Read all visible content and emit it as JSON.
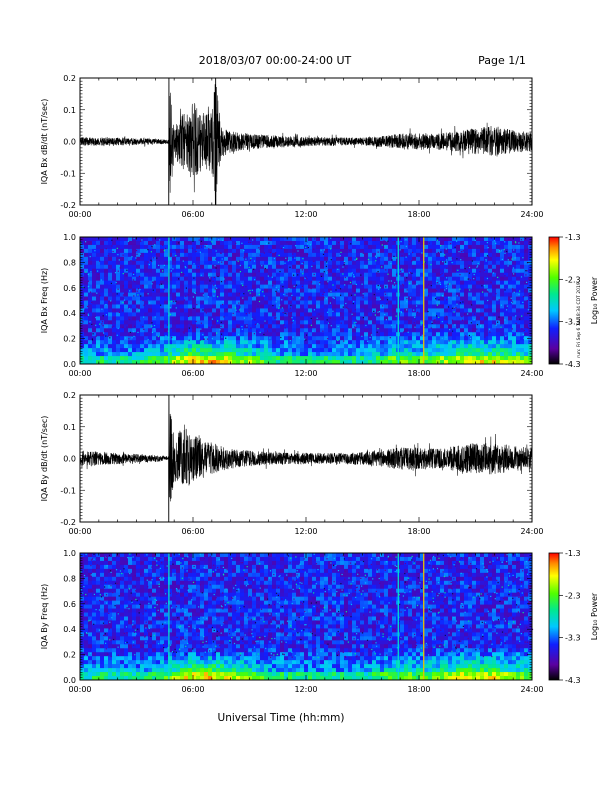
{
  "header": {
    "title": "2018/03/07  00:00-24:00 UT",
    "page": "Page 1/1"
  },
  "stamp": "run: Fri Sep 6 14:18:34 CDT 2019",
  "chart_data": [
    {
      "type": "line",
      "id": "bx-timeseries",
      "ylabel": "IQA Bx dB/dt (nT/sec)",
      "ylim": [
        -0.2,
        0.2
      ],
      "yticks": [
        "0.2",
        "0.1",
        "0.0",
        "-0.1",
        "-0.2"
      ],
      "xlim": [
        0,
        24
      ],
      "xticks": [
        "00:00",
        "06:00",
        "12:00",
        "18:00",
        "24:00"
      ],
      "envelope": {
        "hours": [
          0,
          1,
          2,
          3,
          4,
          4.7,
          4.75,
          5.0,
          5.5,
          6.0,
          6.5,
          7.0,
          7.2,
          7.5,
          8,
          9,
          10,
          11,
          12,
          13,
          14,
          15,
          16,
          17,
          18,
          19,
          20,
          21,
          22,
          23,
          24
        ],
        "amplitude": [
          0.014,
          0.013,
          0.012,
          0.011,
          0.009,
          0.007,
          0.2,
          0.05,
          0.1,
          0.12,
          0.09,
          0.1,
          0.2,
          0.05,
          0.035,
          0.025,
          0.02,
          0.018,
          0.015,
          0.014,
          0.013,
          0.013,
          0.017,
          0.025,
          0.027,
          0.026,
          0.032,
          0.045,
          0.05,
          0.035,
          0.03
        ]
      }
    },
    {
      "type": "heatmap",
      "id": "bx-spectrogram",
      "ylabel": "IQA Bx Freq (Hz)",
      "ylim": [
        0,
        1
      ],
      "yticks": [
        "1.0",
        "0.8",
        "0.6",
        "0.4",
        "0.2",
        "0.0"
      ],
      "xlim": [
        0,
        24
      ],
      "xticks": [
        "00:00",
        "06:00",
        "12:00",
        "18:00",
        "24:00"
      ],
      "colorbar": {
        "label": "Log₁₀ Power",
        "ticks": [
          "-1.3",
          "-2.3",
          "-3.3",
          "-4.3"
        ],
        "range": [
          -4.3,
          -1.3
        ]
      },
      "vertical_lines_hours": [
        4.72,
        16.9,
        18.25
      ]
    },
    {
      "type": "line",
      "id": "by-timeseries",
      "ylabel": "IQA By dB/dt (nT/sec)",
      "ylim": [
        -0.2,
        0.2
      ],
      "yticks": [
        "0.2",
        "0.1",
        "0.0",
        "-0.1",
        "-0.2"
      ],
      "xlim": [
        0,
        24
      ],
      "xticks": [
        "00:00",
        "06:00",
        "12:00",
        "18:00",
        "24:00"
      ],
      "envelope": {
        "hours": [
          0,
          1,
          2,
          3,
          4,
          4.7,
          4.75,
          5.0,
          5.5,
          6.0,
          6.5,
          7.0,
          7.5,
          8,
          9,
          10,
          11,
          12,
          13,
          14,
          15,
          16,
          17,
          18,
          19,
          20,
          21,
          22,
          23,
          24
        ],
        "amplitude": [
          0.025,
          0.022,
          0.018,
          0.014,
          0.01,
          0.008,
          0.2,
          0.07,
          0.1,
          0.08,
          0.06,
          0.05,
          0.04,
          0.033,
          0.025,
          0.02,
          0.018,
          0.018,
          0.017,
          0.018,
          0.02,
          0.025,
          0.035,
          0.035,
          0.03,
          0.04,
          0.05,
          0.05,
          0.04,
          0.035
        ]
      }
    },
    {
      "type": "heatmap",
      "id": "by-spectrogram",
      "ylabel": "IQA By Freq (Hz)",
      "xlabel": "Universal Time (hh:mm)",
      "ylim": [
        0,
        1
      ],
      "yticks": [
        "1.0",
        "0.8",
        "0.6",
        "0.4",
        "0.2",
        "0.0"
      ],
      "xlim": [
        0,
        24
      ],
      "xticks": [
        "00:00",
        "06:00",
        "12:00",
        "18:00",
        "24:00"
      ],
      "colorbar": {
        "label": "Log₁₀ Power",
        "ticks": [
          "-1.3",
          "-2.3",
          "-3.3",
          "-4.3"
        ],
        "range": [
          -4.3,
          -1.3
        ]
      },
      "vertical_lines_hours": [
        4.72,
        16.9,
        18.25
      ]
    }
  ]
}
